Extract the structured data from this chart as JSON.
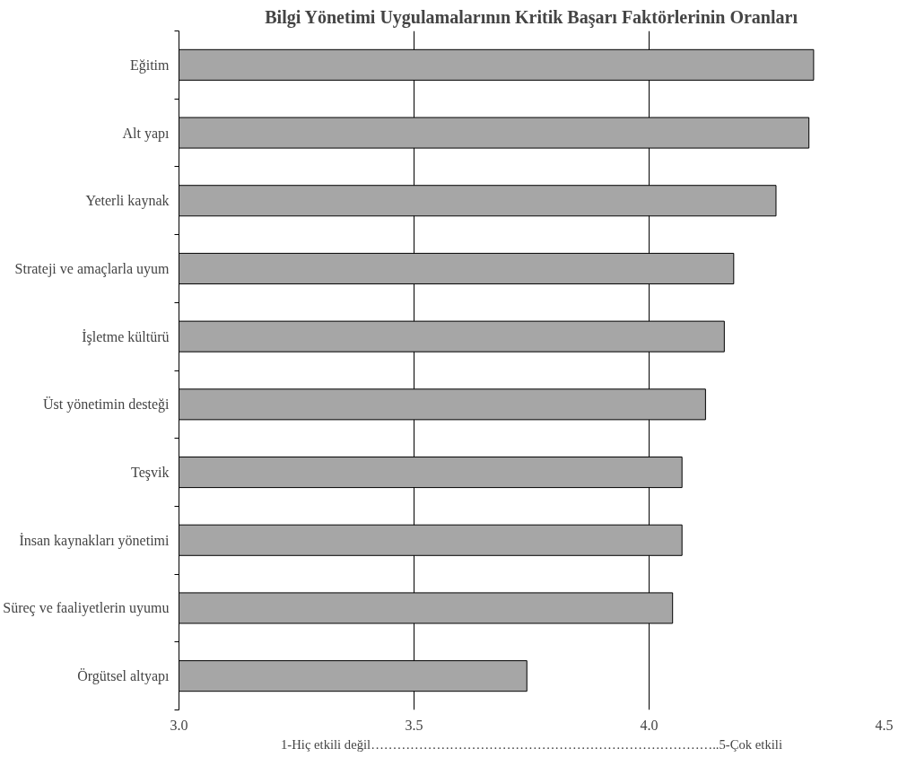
{
  "chart_data": {
    "type": "bar",
    "orientation": "horizontal",
    "title": "Bilgi Yönetimi Uygulamalarının Kritik Başarı Faktörlerinin Oranları",
    "xlabel": "1-Hiç etkili değil……………………………………………………………………..5-Çok etkili",
    "categories": [
      "Eğitim",
      "Alt yapı",
      "Yeterli kaynak",
      "Strateji ve amaçlarla uyum",
      "İşletme kültürü",
      "Üst yönetimin desteği",
      "Teşvik",
      "İnsan kaynakları yönetimi",
      "Süreç ve faaliyetlerin uyumu",
      "Örgütsel altyapı"
    ],
    "values": [
      4.35,
      4.34,
      4.27,
      4.18,
      4.16,
      4.12,
      4.07,
      4.07,
      4.05,
      3.74
    ],
    "color": "#a6a6a6",
    "xlim": [
      3.0,
      4.5
    ],
    "xticks": [
      {
        "value": 3.0,
        "label": "3.0"
      },
      {
        "value": 3.5,
        "label": "3.5"
      },
      {
        "value": 4.0,
        "label": "4.0"
      },
      {
        "value": 4.5,
        "label": "4.5"
      }
    ],
    "grid": "x"
  }
}
